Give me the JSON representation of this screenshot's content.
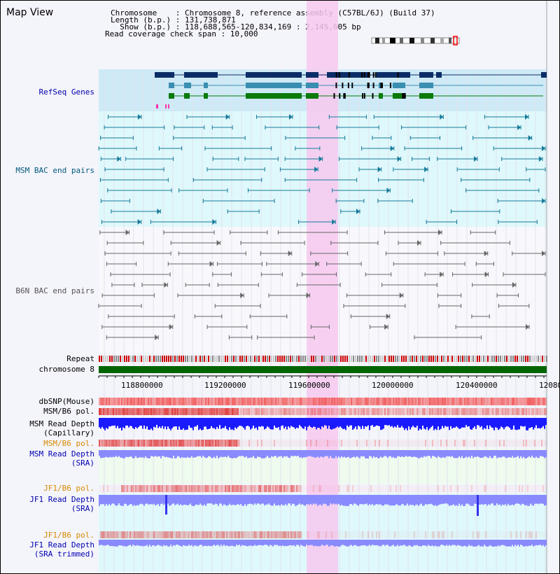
{
  "header": {
    "title": "Map View",
    "chromosome_line": "Chromosome    : Chromosome 8, reference assembly (C57BL/6J) (Build 37)",
    "length_line": "Length (b.p.) : 131,738,871",
    "show_line": "  Show (b.p.) : 118,688,565-120,834,169 : 2,145,605 bp",
    "coverage_line": "Read coverage check span : 10,000"
  },
  "tracks": {
    "refseq": "RefSeq Genes",
    "msm_bac": "MSM BAC end pairs",
    "b6n_bac": "B6N BAC end pairs",
    "repeat": "Repeat",
    "chromosome": "chromosome 8",
    "dbsnp": "dbSNP(Mouse)",
    "msm_b6_pol_1": "MSM/B6 pol.",
    "msm_depth_cap_1": "MSM Read Depth",
    "msm_depth_cap_2": "(Capillary)",
    "msm_b6_pol_2": "MSM/B6 pol.",
    "msm_depth_sra_1": "MSM Read Depth",
    "msm_depth_sra_2": "(SRA)",
    "jf1_b6_pol_1": "JF1/B6 pol.",
    "jf1_depth_sra_1": "JF1 Read Depth",
    "jf1_depth_sra_2": "(SRA)",
    "jf1_b6_pol_2": "JF1/B6 pol.",
    "jf1_depth_trim_1": "JF1 Read Depth",
    "jf1_depth_trim_2": "(SRA trimmed)"
  },
  "axis": {
    "ticks": [
      "118800000",
      "119200000",
      "119600000",
      "120000000",
      "120400000",
      "12080"
    ]
  },
  "colors": {
    "refseq_bg": "#cdeaf6",
    "msm_bg": "#dff8fb",
    "highlight": "#f7c9ef",
    "gene_dark": "#0b2c66",
    "gene_mid": "#3a8fb0",
    "gene_green": "#0a7a0a",
    "chromosome_bar": "#006400",
    "depth_blue": "#1a1aff",
    "depth_light": "#8a8aff",
    "snp_red": "#f26060"
  }
}
